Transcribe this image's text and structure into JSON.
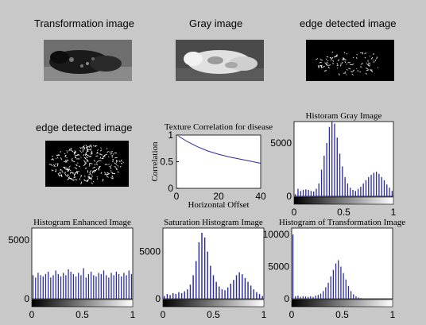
{
  "row1": {
    "transformation_title": "Transformation image",
    "gray_title": "Gray image",
    "edge_title": "edge detected image"
  },
  "row2": {
    "edge2_title": "edge detected image"
  },
  "colors": {
    "figure_bg": "#c8c8c8",
    "bar": "#2b2b9a",
    "line": "#2b2b9a"
  },
  "chart_data": [
    {
      "id": "texture",
      "type": "line",
      "title": "Texture Correlation for disease",
      "xlabel": "Horizontal Offset",
      "ylabel": "Correlation",
      "xlim": [
        0,
        40
      ],
      "ylim": [
        0,
        1
      ],
      "xticks": [
        "0",
        "20",
        "40"
      ],
      "yticks": [
        "0",
        "0.5",
        "1"
      ],
      "x": [
        1,
        5,
        10,
        15,
        20,
        25,
        30,
        35,
        40
      ],
      "y": [
        0.98,
        0.88,
        0.78,
        0.7,
        0.64,
        0.59,
        0.55,
        0.51,
        0.47
      ]
    },
    {
      "id": "hist_gray",
      "type": "bar",
      "title": "Historam Gray Image",
      "xlim": [
        0,
        1
      ],
      "ylim": [
        0,
        7000
      ],
      "xticks": [
        "0",
        "0.5",
        "1"
      ],
      "yticks": [
        "0",
        "5000"
      ],
      "values": [
        200,
        700,
        500,
        600,
        650,
        600,
        500,
        450,
        700,
        1200,
        2500,
        3800,
        5000,
        6500,
        7000,
        6800,
        5500,
        4000,
        2800,
        1800,
        1200,
        800,
        600,
        500,
        700,
        900,
        1200,
        1500,
        1800,
        2000,
        2200,
        2300,
        2100,
        1800,
        1500,
        1100,
        800,
        500
      ]
    },
    {
      "id": "hist_enh",
      "type": "bar",
      "title": "Histogram Enhanced Image",
      "xlim": [
        0,
        1
      ],
      "ylim": [
        0,
        6000
      ],
      "xticks": [
        "0",
        "0.5",
        "1"
      ],
      "yticks": [
        "0",
        "5000"
      ],
      "values": [
        2000,
        1800,
        2200,
        2000,
        1900,
        2100,
        2300,
        1800,
        2000,
        2400,
        2100,
        1900,
        2200,
        2000,
        2500,
        2300,
        2100,
        1900,
        2200,
        2000,
        2600,
        1800,
        2100,
        2300,
        2000,
        1900,
        2200,
        2100,
        2400,
        2000,
        1800,
        2200,
        2000,
        2300,
        2100,
        1900,
        2200,
        2000,
        2400,
        2100
      ]
    },
    {
      "id": "hist_sat",
      "type": "bar",
      "title": "Saturation Histogram Image",
      "xlim": [
        0,
        1
      ],
      "ylim": [
        0,
        7500
      ],
      "xticks": [
        "0",
        "0.5",
        "1"
      ],
      "yticks": [
        "0",
        "5000"
      ],
      "values": [
        300,
        500,
        400,
        600,
        500,
        700,
        600,
        800,
        1000,
        1500,
        2500,
        4000,
        6000,
        7000,
        6500,
        5000,
        3500,
        2500,
        1800,
        1300,
        1000,
        900,
        1200,
        1600,
        2000,
        2500,
        2800,
        2600,
        2200,
        1800,
        1400,
        1000,
        700,
        500,
        300
      ]
    },
    {
      "id": "hist_trans",
      "type": "bar",
      "title": "Histogram of Transformation Image",
      "xlim": [
        0,
        1
      ],
      "ylim": [
        0,
        11000
      ],
      "xticks": [
        "0",
        "0.5",
        "1"
      ],
      "yticks": [
        "0",
        "5000",
        "10000"
      ],
      "values": [
        10000,
        400,
        500,
        300,
        400,
        350,
        300,
        400,
        300,
        500,
        600,
        800,
        1200,
        1800,
        2500,
        3500,
        4500,
        5500,
        6000,
        5000,
        4000,
        3000,
        2000,
        1200,
        700,
        400,
        200,
        100,
        50,
        0,
        0,
        0,
        0,
        0,
        0,
        0,
        0,
        0,
        0,
        0
      ]
    }
  ]
}
